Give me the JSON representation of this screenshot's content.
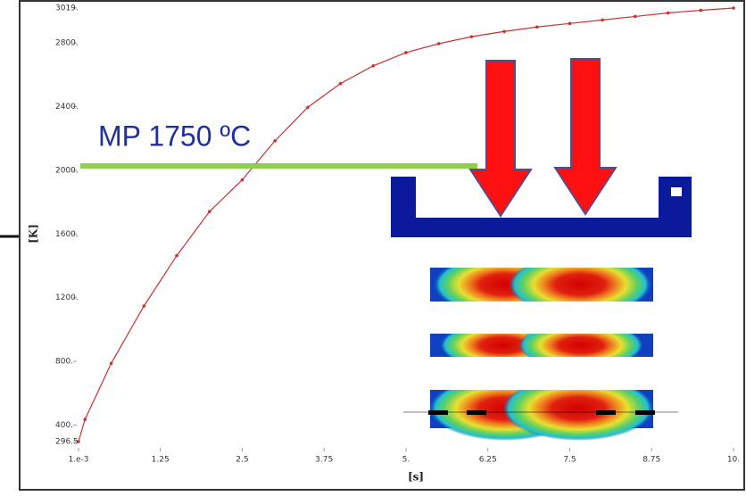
{
  "chart_data": {
    "type": "line",
    "xlabel": "[s]",
    "ylabel": "[K]",
    "annotation": "MP 1750 ºC",
    "x": [
      0,
      0.1,
      0.5,
      1,
      1.5,
      2,
      2.5,
      3,
      3.5,
      4,
      4.5,
      5,
      5.5,
      6,
      6.5,
      7,
      7.5,
      8,
      8.5,
      9,
      9.5,
      10
    ],
    "series": [
      {
        "color": "#c83232",
        "values": [
          296.5,
          436,
          788,
          1148,
          1464,
          1741,
          1940,
          2185,
          2395,
          2545,
          2656,
          2739,
          2795,
          2839,
          2872,
          2900,
          2922,
          2944,
          2966,
          2988,
          3005,
          3019
        ]
      }
    ],
    "xlim": [
      0.001,
      10
    ],
    "ylim": [
      296.5,
      3019
    ],
    "xticks": [
      {
        "value": 0.001,
        "label": "1.e-3"
      },
      1.25,
      2.5,
      3.75,
      {
        "value": 5,
        "label": "5."
      },
      6.25,
      7.5,
      8.75,
      {
        "value": 10,
        "label": "10."
      }
    ],
    "yticks": [
      296.5,
      {
        "value": 400,
        "label": "400."
      },
      {
        "value": 800,
        "label": "800."
      },
      {
        "value": 1200,
        "label": "1200."
      },
      {
        "value": 1600,
        "label": "1600."
      },
      {
        "value": 2000,
        "label": "2000."
      },
      {
        "value": 2400,
        "label": "2400."
      },
      {
        "value": 2800,
        "label": "2800."
      },
      {
        "value": 3019,
        "label": "3019."
      }
    ]
  }
}
